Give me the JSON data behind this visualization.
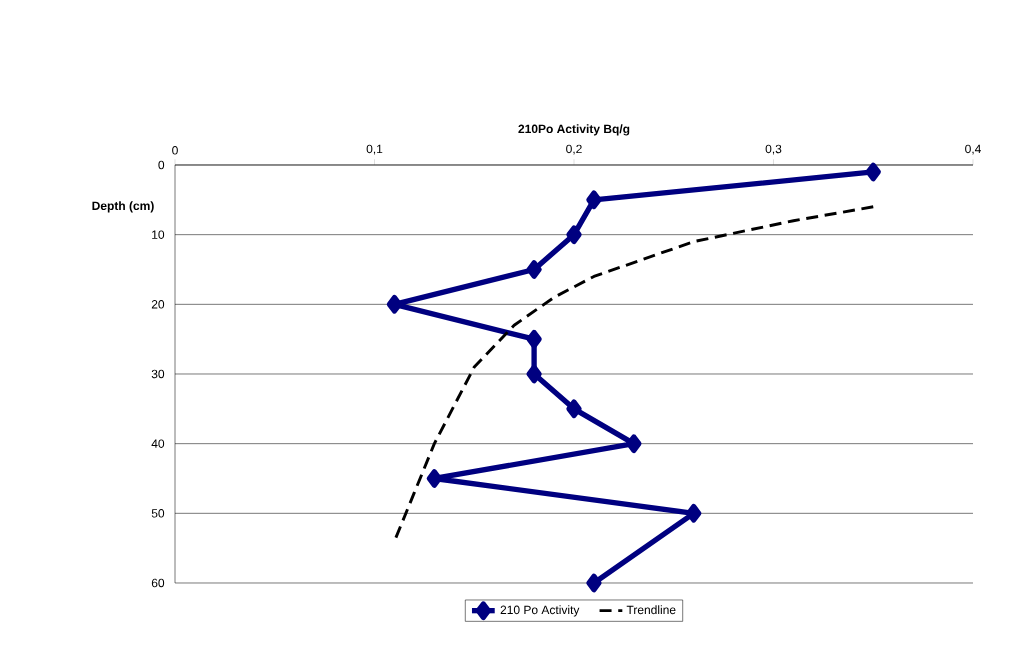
{
  "chart_data": {
    "type": "line",
    "xlabel": "210Po Activity Bq/g",
    "ylabel": "Depth (cm)",
    "xlim": [
      0,
      0.4
    ],
    "ylim": [
      60,
      0
    ],
    "xticks": [
      0,
      {
        "value": 0.1,
        "label": "0,1"
      },
      {
        "value": 0.2,
        "label": "0,2"
      },
      {
        "value": 0.3,
        "label": "0,3"
      },
      {
        "value": 0.4,
        "label": "0,4"
      }
    ],
    "yticks": [
      0,
      10,
      20,
      30,
      40,
      50,
      60
    ],
    "grid": "y",
    "legend": "bottom",
    "series": [
      {
        "name": "210 Po Activity",
        "color": "#000080",
        "marker": "diamond",
        "line_style": "solid",
        "x": [
          0.35,
          0.21,
          0.2,
          0.18,
          0.11,
          0.18,
          0.18,
          0.2,
          0.23,
          0.13,
          0.26,
          0.21
        ],
        "values": [
          1,
          5,
          10,
          15,
          20,
          25,
          30,
          35,
          40,
          45,
          50,
          60
        ]
      },
      {
        "name": "Trendline",
        "color": "#000000",
        "marker": "none",
        "line_style": "dashed",
        "x": [
          0.35,
          0.31,
          0.26,
          0.21,
          0.19,
          0.17,
          0.15,
          0.13,
          0.12,
          0.11
        ],
        "values": [
          6,
          8,
          11,
          16,
          19,
          23,
          29,
          40,
          47,
          54
        ]
      }
    ]
  }
}
